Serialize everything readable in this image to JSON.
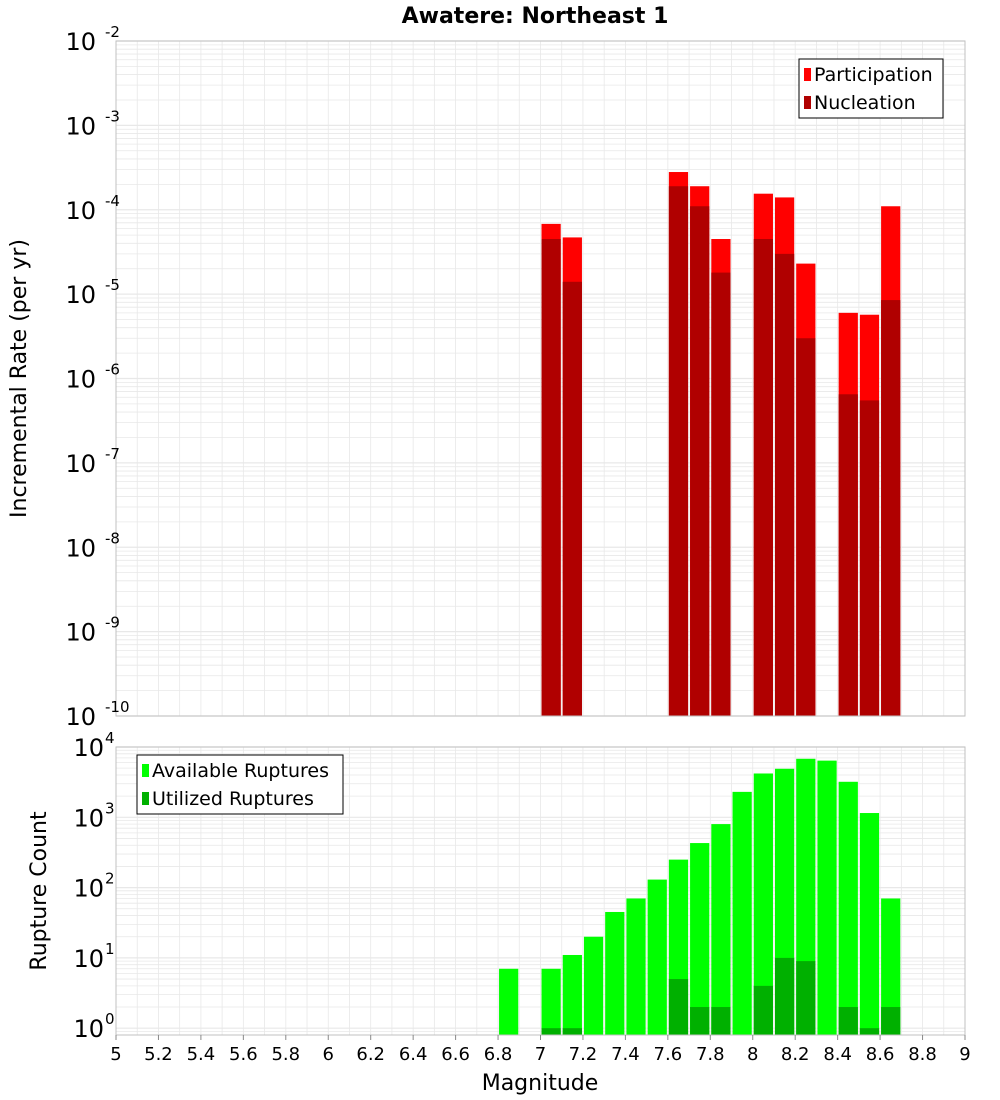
{
  "title": "Awatere: Northeast 1",
  "xlabel": "Magnitude",
  "colors": {
    "participation": "#ff0000",
    "nucleation": "#b00000",
    "available": "#00ff00",
    "utilized": "#00b000",
    "grid": "#e8e8e8",
    "frame": "#c0c0c0"
  },
  "chart_data": [
    {
      "type": "bar",
      "title": "Awatere: Northeast 1",
      "xlabel": "Magnitude",
      "ylabel": "Incremental Rate (per yr)",
      "yscale": "log",
      "xlim": [
        5,
        9
      ],
      "ylim": [
        1e-10,
        0.01
      ],
      "bin_width": 0.1,
      "grid": true,
      "legend_position": "top-right",
      "y_tick_labels": [
        "10^-10",
        "10^-9",
        "10^-8",
        "10^-7",
        "10^-6",
        "10^-5",
        "10^-4",
        "10^-3",
        "10^-2"
      ],
      "series": [
        {
          "name": "Participation",
          "x": [
            7.05,
            7.15,
            7.65,
            7.75,
            7.85,
            8.05,
            8.15,
            8.25,
            8.45,
            8.55,
            8.65
          ],
          "values": [
            6.8e-05,
            4.7e-05,
            0.00028,
            0.00019,
            4.5e-05,
            0.000155,
            0.00014,
            2.3e-05,
            6e-06,
            5.7e-06,
            0.00011
          ]
        },
        {
          "name": "Nucleation",
          "x": [
            7.05,
            7.15,
            7.65,
            7.75,
            7.85,
            8.05,
            8.15,
            8.25,
            8.45,
            8.55,
            8.65
          ],
          "values": [
            4.5e-05,
            1.4e-05,
            0.00019,
            0.00011,
            1.8e-05,
            4.5e-05,
            3e-05,
            3e-06,
            6.5e-07,
            5.5e-07,
            8.5e-06
          ]
        }
      ]
    },
    {
      "type": "bar",
      "xlabel": "Magnitude",
      "ylabel": "Rupture Count",
      "yscale": "log",
      "xlim": [
        5,
        9
      ],
      "ylim": [
        0.8,
        10000
      ],
      "bin_width": 0.1,
      "grid": true,
      "legend_position": "top-left",
      "y_tick_labels": [
        "10^0",
        "10^1",
        "10^2",
        "10^3",
        "10^4"
      ],
      "x_ticks": [
        "5",
        "5.2",
        "5.4",
        "5.6",
        "5.8",
        "6",
        "6.2",
        "6.4",
        "6.6",
        "6.8",
        "7",
        "7.2",
        "7.4",
        "7.6",
        "7.8",
        "8",
        "8.2",
        "8.4",
        "8.6",
        "8.8",
        "9"
      ],
      "series": [
        {
          "name": "Available Ruptures",
          "x": [
            6.85,
            7.05,
            7.15,
            7.25,
            7.35,
            7.45,
            7.55,
            7.65,
            7.75,
            7.85,
            7.95,
            8.05,
            8.15,
            8.25,
            8.35,
            8.45,
            8.55,
            8.65
          ],
          "values": [
            7,
            7,
            11,
            20,
            45,
            70,
            130,
            250,
            430,
            800,
            2300,
            4200,
            4900,
            6800,
            6400,
            3200,
            1150,
            70
          ]
        },
        {
          "name": "Utilized Ruptures",
          "x": [
            7.05,
            7.15,
            7.65,
            7.75,
            7.85,
            8.05,
            8.15,
            8.25,
            8.45,
            8.55,
            8.65
          ],
          "values": [
            1,
            1,
            5,
            2,
            2,
            4,
            10,
            9,
            2,
            1,
            2
          ]
        }
      ]
    }
  ]
}
